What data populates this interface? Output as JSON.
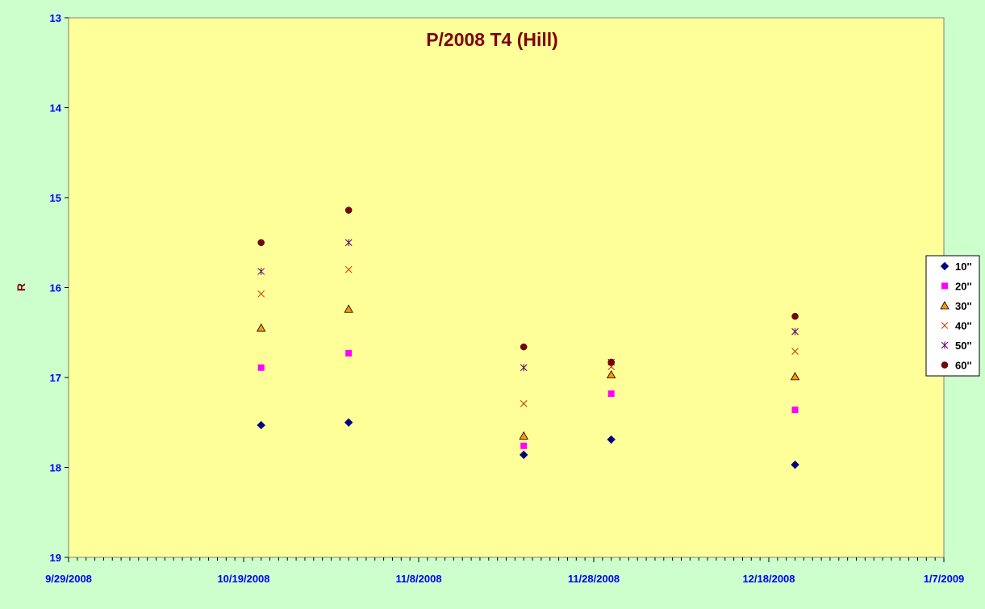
{
  "chart_data": {
    "type": "scatter",
    "title": "P/2008 T4 (Hill)",
    "xlabel": "",
    "ylabel": "R",
    "x_axis": {
      "type": "date",
      "range": [
        "2008-09-29",
        "2009-01-07"
      ],
      "tick_labels": [
        "9/29/2008",
        "10/19/2008",
        "11/8/2008",
        "11/28/2008",
        "12/18/2008",
        "1/7/2009"
      ]
    },
    "y_axis": {
      "range": [
        13,
        19
      ],
      "reversed": true,
      "tick_labels": [
        "13",
        "14",
        "15",
        "16",
        "17",
        "18",
        "19"
      ]
    },
    "grid": false,
    "legend_position": "right",
    "plot_background": "#ffff99",
    "chart_background": "#ccffcc",
    "series": [
      {
        "name": "10''",
        "marker": "diamond",
        "color": "#000080",
        "points": [
          [
            "2008-10-21",
            17.53
          ],
          [
            "2008-10-31",
            17.5
          ],
          [
            "2008-11-20",
            17.86
          ],
          [
            "2008-11-30",
            17.69
          ],
          [
            "2008-12-21",
            17.97
          ]
        ]
      },
      {
        "name": "20''",
        "marker": "square",
        "color": "#ff00ff",
        "points": [
          [
            "2008-10-21",
            16.89
          ],
          [
            "2008-10-31",
            16.73
          ],
          [
            "2008-11-20",
            17.76
          ],
          [
            "2008-11-30",
            17.18
          ],
          [
            "2008-12-21",
            17.36
          ]
        ]
      },
      {
        "name": "30''",
        "marker": "triangle",
        "color": "#ff9900",
        "points": [
          [
            "2008-10-21",
            16.45
          ],
          [
            "2008-10-31",
            16.24
          ],
          [
            "2008-11-20",
            17.65
          ],
          [
            "2008-11-30",
            16.97
          ],
          [
            "2008-12-21",
            16.99
          ]
        ]
      },
      {
        "name": "40''",
        "marker": "x",
        "color": "#cc3300",
        "points": [
          [
            "2008-10-21",
            16.07
          ],
          [
            "2008-10-31",
            15.8
          ],
          [
            "2008-11-20",
            17.29
          ],
          [
            "2008-11-30",
            16.88
          ],
          [
            "2008-12-21",
            16.71
          ]
        ]
      },
      {
        "name": "50''",
        "marker": "star",
        "color": "#660066",
        "points": [
          [
            "2008-10-21",
            15.82
          ],
          [
            "2008-10-31",
            15.5
          ],
          [
            "2008-11-20",
            16.89
          ],
          [
            "2008-11-30",
            16.83
          ],
          [
            "2008-12-21",
            16.49
          ]
        ]
      },
      {
        "name": "60''",
        "marker": "circle",
        "color": "#800000",
        "points": [
          [
            "2008-10-21",
            15.5
          ],
          [
            "2008-10-31",
            15.14
          ],
          [
            "2008-11-20",
            16.66
          ],
          [
            "2008-11-30",
            16.83
          ],
          [
            "2008-12-21",
            16.32
          ]
        ]
      }
    ]
  }
}
